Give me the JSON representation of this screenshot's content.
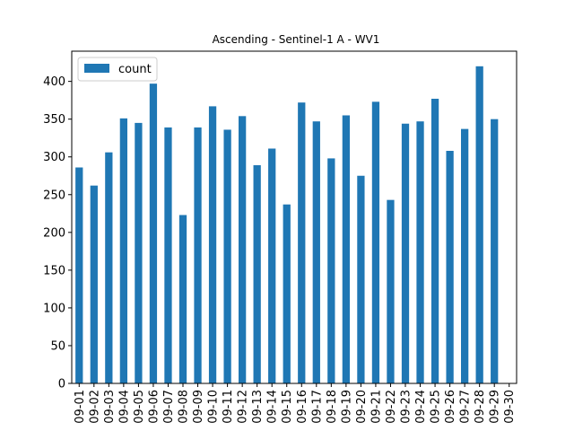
{
  "chart_data": {
    "type": "bar",
    "title": "Ascending - Sentinel-1 A - WV1",
    "xlabel": "",
    "ylabel": "",
    "categories": [
      "09-01",
      "09-02",
      "09-03",
      "09-04",
      "09-05",
      "09-06",
      "09-07",
      "09-08",
      "09-09",
      "09-10",
      "09-11",
      "09-12",
      "09-13",
      "09-14",
      "09-15",
      "09-16",
      "09-17",
      "09-18",
      "09-19",
      "09-20",
      "09-21",
      "09-22",
      "09-23",
      "09-24",
      "09-25",
      "09-26",
      "09-27",
      "09-28",
      "09-29",
      "09-30"
    ],
    "series": [
      {
        "name": "count",
        "color": "#1f77b4",
        "values": [
          286,
          262,
          306,
          351,
          345,
          397,
          339,
          223,
          339,
          367,
          336,
          354,
          289,
          311,
          237,
          372,
          347,
          298,
          355,
          275,
          373,
          243,
          344,
          347,
          377,
          308,
          337,
          420,
          350,
          0
        ]
      }
    ],
    "ylim": [
      0,
      440
    ],
    "yticks": [
      0,
      50,
      100,
      150,
      200,
      250,
      300,
      350,
      400
    ],
    "grid": false,
    "legend": "top-left"
  }
}
